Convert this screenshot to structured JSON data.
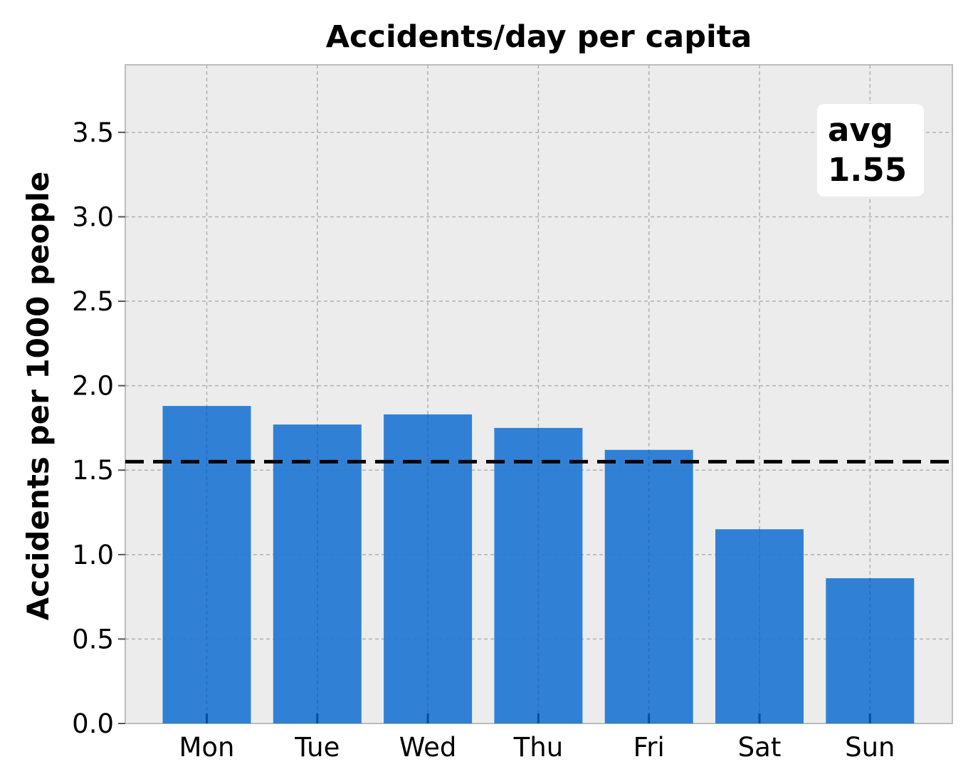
{
  "chart_data": {
    "type": "bar",
    "title": "Accidents/day per capita",
    "xlabel": "",
    "ylabel": "Accidents per 1000 people",
    "categories": [
      "Mon",
      "Tue",
      "Wed",
      "Thu",
      "Fri",
      "Sat",
      "Sun"
    ],
    "values": [
      1.88,
      1.77,
      1.83,
      1.75,
      1.62,
      1.15,
      0.86
    ],
    "ylim": [
      0,
      3.9
    ],
    "yticks": [
      "0.0",
      "0.5",
      "1.0",
      "1.5",
      "2.0",
      "2.5",
      "3.0",
      "3.5"
    ],
    "average": 1.55,
    "annotation": {
      "line1": "avg",
      "line2": "1.55"
    },
    "grid": true,
    "colors": {
      "bar": "#1f77d4",
      "background": "#ececec",
      "grid": "#b0b0b0",
      "avg_line": "#000000"
    }
  }
}
